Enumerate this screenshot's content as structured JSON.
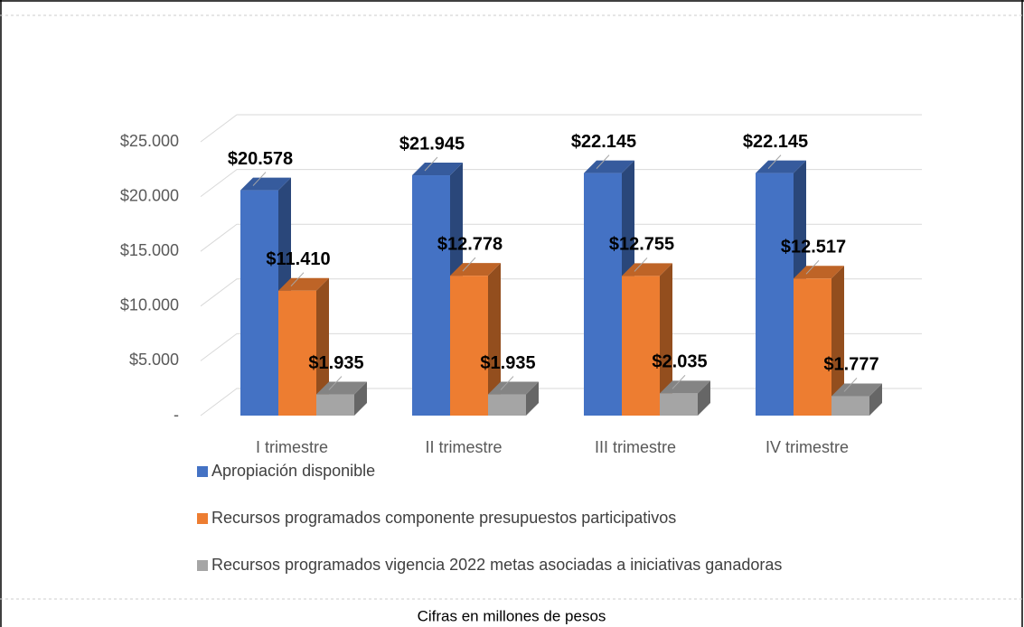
{
  "chart_data": {
    "type": "bar3d",
    "categories": [
      "I trimestre",
      "II trimestre",
      "III trimestre",
      "IV trimestre"
    ],
    "series": [
      {
        "name": "Apropiación disponible",
        "color": "#4472c4",
        "values": [
          20578,
          21945,
          22145,
          22145
        ],
        "value_labels": [
          "$20.578",
          "$21.945",
          "$22.145",
          "$22.145"
        ]
      },
      {
        "name": "Recursos programados componente presupuestos participativos",
        "color": "#ed7d31",
        "values": [
          11410,
          12778,
          12755,
          12517
        ],
        "value_labels": [
          "$11.410",
          "$12.778",
          "$12.755",
          "$12.517"
        ]
      },
      {
        "name": "Recursos programados vigencia 2022 metas asociadas a iniciativas ganadoras",
        "color": "#a5a5a5",
        "values": [
          1935,
          1935,
          2035,
          1777
        ],
        "value_labels": [
          "$1.935",
          "$1.935",
          "$2.035",
          "$1.777"
        ]
      }
    ],
    "ylim": [
      0,
      25000
    ],
    "yticks": [
      {
        "value": 0,
        "label": "-"
      },
      {
        "value": 5000,
        "label": "$5.000"
      },
      {
        "value": 10000,
        "label": "$10.000"
      },
      {
        "value": 15000,
        "label": "$15.000"
      },
      {
        "value": 20000,
        "label": "$20.000"
      },
      {
        "value": 25000,
        "label": "$25.000"
      }
    ],
    "grid": true,
    "legend": "bottom-left",
    "note": "Cifras en millones de pesos"
  }
}
